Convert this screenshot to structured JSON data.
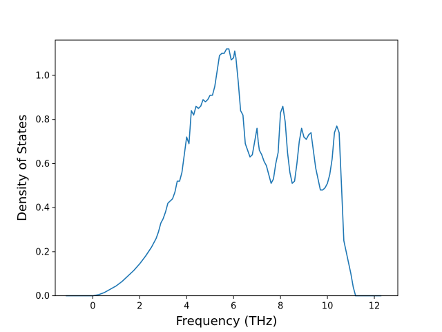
{
  "chart_data": {
    "type": "line",
    "xlabel": "Frequency (THz)",
    "ylabel": "Density of States",
    "xlim": [
      -1.6,
      13.0
    ],
    "ylim": [
      0.0,
      1.16
    ],
    "x_ticks": [
      0,
      2,
      4,
      6,
      8,
      10,
      12
    ],
    "x_tick_labels": [
      "0",
      "2",
      "4",
      "6",
      "8",
      "10",
      "12"
    ],
    "y_ticks": [
      0.0,
      0.2,
      0.4,
      0.6,
      0.8,
      1.0
    ],
    "y_tick_labels": [
      "0.0",
      "0.2",
      "0.4",
      "0.6",
      "0.8",
      "1.0"
    ],
    "grid": false,
    "line_color": "#1f77b4",
    "series": [
      {
        "x": [
          -1.15,
          -0.5,
          0.0,
          0.25,
          0.5,
          0.75,
          1.0,
          1.25,
          1.5,
          1.75,
          2.0,
          2.25,
          2.5,
          2.7,
          2.8,
          2.9,
          3.0,
          3.1,
          3.2,
          3.3,
          3.4,
          3.5,
          3.6,
          3.7,
          3.8,
          3.9,
          4.0,
          4.1,
          4.2,
          4.3,
          4.4,
          4.5,
          4.6,
          4.7,
          4.8,
          4.9,
          5.0,
          5.1,
          5.2,
          5.3,
          5.4,
          5.5,
          5.6,
          5.7,
          5.8,
          5.9,
          6.0,
          6.05,
          6.1,
          6.2,
          6.3,
          6.4,
          6.5,
          6.6,
          6.7,
          6.8,
          6.9,
          7.0,
          7.05,
          7.1,
          7.2,
          7.3,
          7.4,
          7.5,
          7.6,
          7.7,
          7.8,
          7.9,
          8.0,
          8.1,
          8.2,
          8.25,
          8.3,
          8.4,
          8.5,
          8.6,
          8.7,
          8.8,
          8.9,
          9.0,
          9.1,
          9.2,
          9.3,
          9.4,
          9.5,
          9.6,
          9.7,
          9.8,
          9.9,
          10.0,
          10.1,
          10.2,
          10.3,
          10.4,
          10.5,
          10.6,
          10.7,
          10.8,
          10.9,
          11.0,
          11.1,
          11.2,
          11.5,
          12.0,
          12.3
        ],
        "y": [
          0.0,
          0.0,
          0.0,
          0.005,
          0.015,
          0.03,
          0.045,
          0.065,
          0.09,
          0.115,
          0.145,
          0.18,
          0.22,
          0.26,
          0.29,
          0.33,
          0.35,
          0.38,
          0.42,
          0.43,
          0.44,
          0.47,
          0.52,
          0.52,
          0.56,
          0.64,
          0.72,
          0.69,
          0.84,
          0.82,
          0.86,
          0.85,
          0.86,
          0.89,
          0.88,
          0.89,
          0.91,
          0.91,
          0.95,
          1.02,
          1.09,
          1.1,
          1.1,
          1.12,
          1.12,
          1.07,
          1.08,
          1.11,
          1.08,
          0.97,
          0.84,
          0.82,
          0.69,
          0.66,
          0.63,
          0.64,
          0.7,
          0.76,
          0.7,
          0.66,
          0.64,
          0.61,
          0.59,
          0.55,
          0.51,
          0.53,
          0.6,
          0.65,
          0.83,
          0.86,
          0.79,
          0.72,
          0.65,
          0.56,
          0.51,
          0.52,
          0.6,
          0.7,
          0.76,
          0.72,
          0.71,
          0.73,
          0.74,
          0.66,
          0.58,
          0.53,
          0.48,
          0.48,
          0.49,
          0.51,
          0.55,
          0.62,
          0.74,
          0.77,
          0.74,
          0.5,
          0.25,
          0.2,
          0.15,
          0.1,
          0.04,
          0.0,
          0.0,
          0.0,
          0.0
        ]
      }
    ]
  }
}
